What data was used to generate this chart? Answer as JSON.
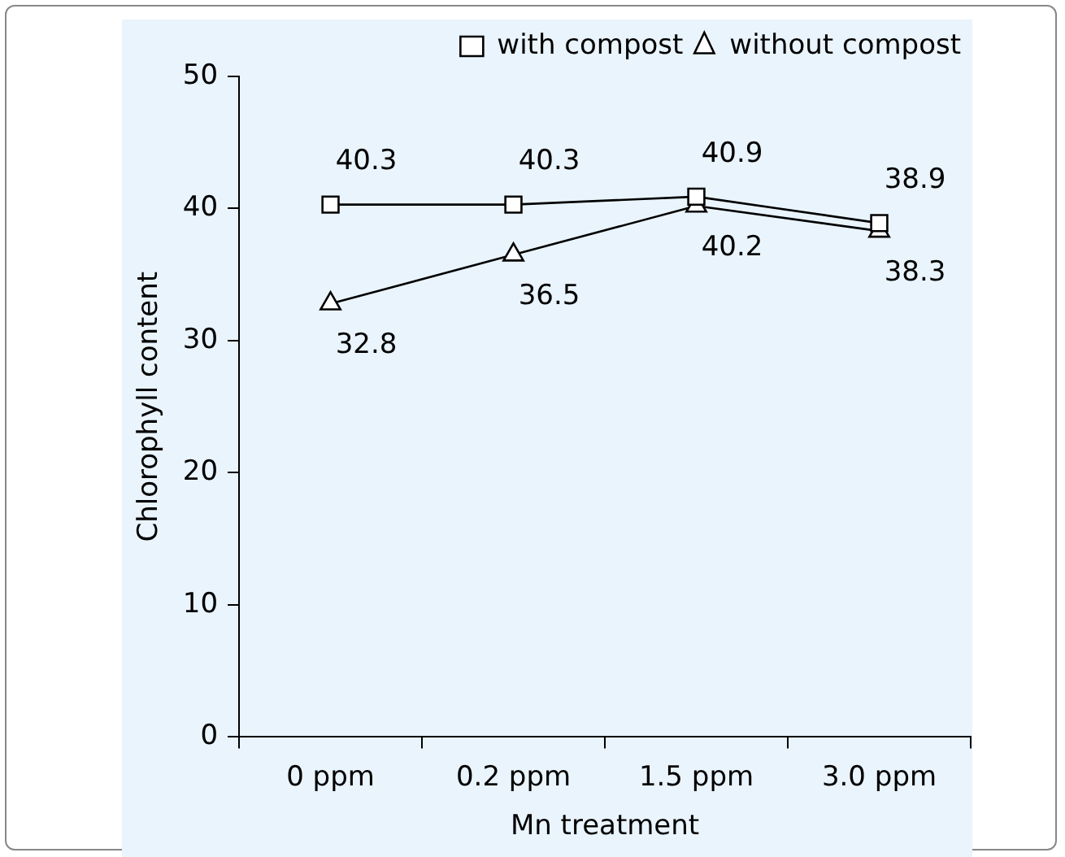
{
  "chart_data": {
    "type": "line",
    "xlabel": "Mn treatment",
    "ylabel": "Chlorophyll content",
    "categories": [
      "0 ppm",
      "0.2 ppm",
      "1.5 ppm",
      "3.0 ppm"
    ],
    "series": [
      {
        "name": "with compost",
        "color": "#000000",
        "marker": "square",
        "values": [
          40.3,
          40.3,
          40.9,
          38.9
        ]
      },
      {
        "name": "without compost",
        "color": "#000000",
        "marker": "triangle",
        "values": [
          32.8,
          36.5,
          40.2,
          38.3
        ]
      }
    ],
    "ylim": [
      0,
      50
    ],
    "yticks": [
      0,
      10,
      20,
      30,
      40,
      50
    ],
    "grid": false,
    "legend": "top right",
    "data_labels": true,
    "line_style": "solid"
  }
}
